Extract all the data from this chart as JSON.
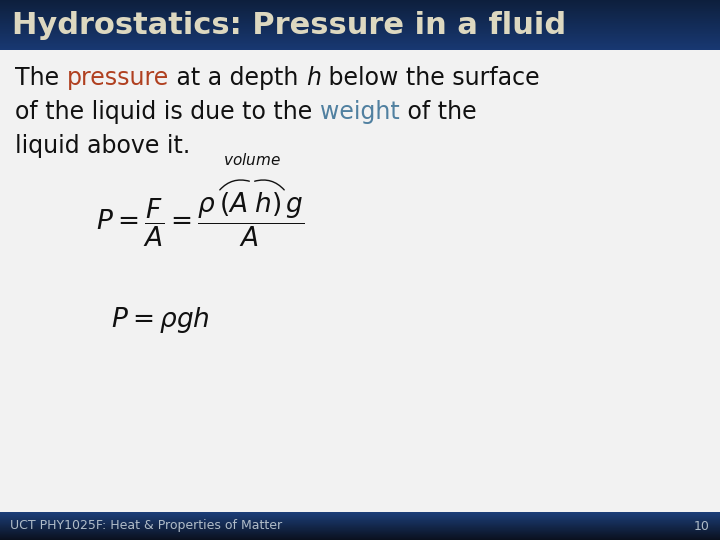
{
  "title": "Hydrostatics: Pressure in a fluid",
  "title_bg_top": "#0d1f3c",
  "title_bg_bottom": "#1c3f7a",
  "title_text_color": "#ddd8c0",
  "body_bg_color": "#f0f0f0",
  "footer_bg_top": "#1c3f7a",
  "footer_bg_bottom": "#0d1020",
  "footer_text": "UCT PHY1025F: Heat & Properties of Matter",
  "footer_number": "10",
  "footer_text_color": "#b0bcc8",
  "pressure_color": "#b04020",
  "weight_color": "#5080a0",
  "body_text_color": "#111111",
  "title_fontsize": 22,
  "body_fontsize": 17,
  "footer_fontsize": 9,
  "eq1_fontsize": 19,
  "eq2_fontsize": 19,
  "vol_fontsize": 11
}
